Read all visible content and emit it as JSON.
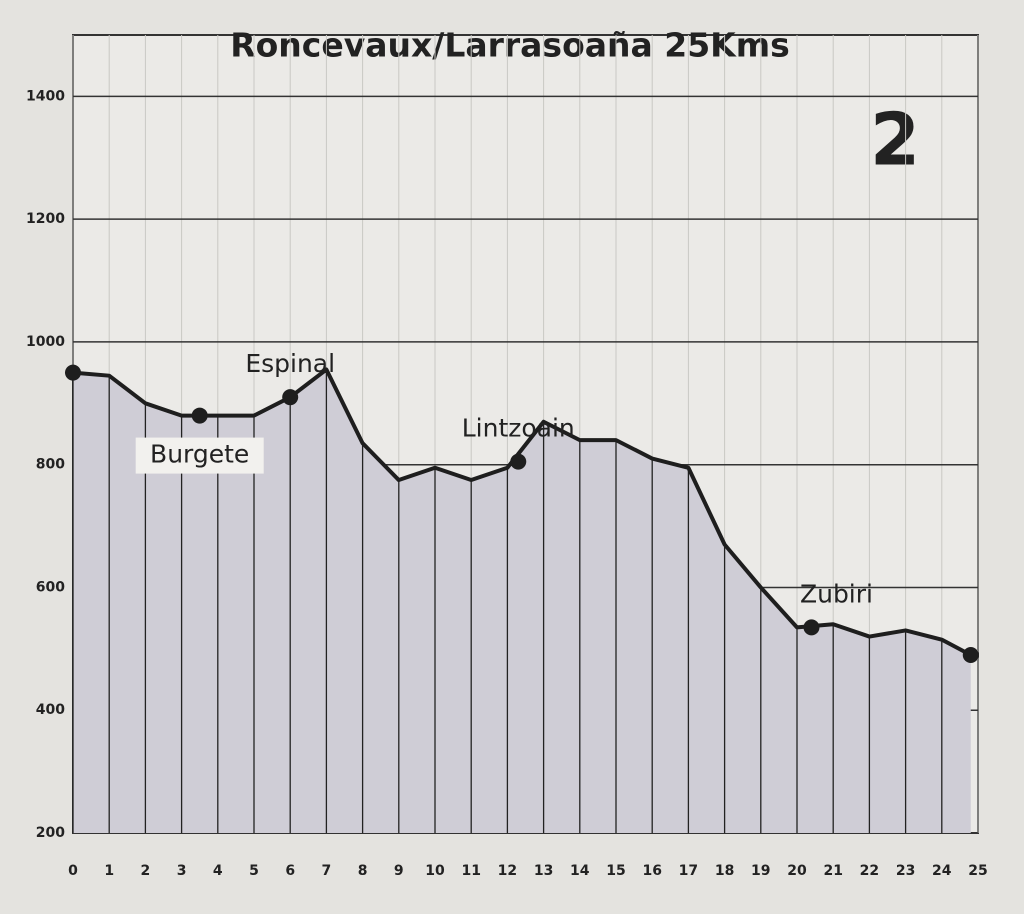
{
  "chart_data": {
    "type": "area",
    "title": "Roncevaux/Larrasoaña 25Kms",
    "annotation": "2",
    "x": [
      0,
      1,
      2,
      3,
      4,
      5,
      6,
      7,
      8,
      9,
      10,
      11,
      12,
      13,
      14,
      15,
      16,
      17,
      18,
      19,
      20,
      21,
      22,
      23,
      24,
      24.8
    ],
    "values": [
      950,
      945,
      900,
      880,
      880,
      880,
      910,
      955,
      835,
      775,
      795,
      775,
      795,
      870,
      840,
      840,
      810,
      795,
      670,
      600,
      535,
      540,
      520,
      530,
      515,
      490
    ],
    "markers": [
      {
        "x": 0,
        "value": 950
      },
      {
        "x": 3.5,
        "value": 880,
        "label": "Burgete"
      },
      {
        "x": 6,
        "value": 910,
        "label": "Espinal"
      },
      {
        "x": 12.3,
        "value": 805,
        "label": "Lintzoain"
      },
      {
        "x": 20.4,
        "value": 535,
        "label": "Zubiri"
      },
      {
        "x": 24.8,
        "value": 490
      }
    ],
    "color": "#cfcdd6",
    "line_color": "#1e1e1e",
    "xlim": [
      0,
      25
    ],
    "ylim": [
      200,
      1500
    ],
    "xticks": [
      0,
      1,
      2,
      3,
      4,
      5,
      6,
      7,
      8,
      9,
      10,
      11,
      12,
      13,
      14,
      15,
      16,
      17,
      18,
      19,
      20,
      21,
      22,
      23,
      24,
      25
    ],
    "yticks": [
      200,
      400,
      600,
      800,
      1000,
      1200,
      1400
    ],
    "grid": true
  }
}
